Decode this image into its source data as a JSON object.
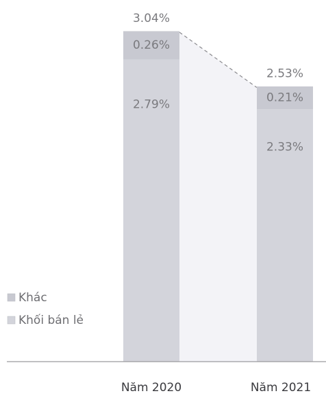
{
  "chart_data": {
    "type": "stacked_bar",
    "categories": [
      "Năm 2020",
      "Năm 2021"
    ],
    "series": [
      {
        "name": "Khối bán lẻ",
        "color": "#d3d4db",
        "values": [
          2.79,
          2.33
        ],
        "value_labels": [
          "2.79%",
          "2.33%"
        ]
      },
      {
        "name": "Khác",
        "color": "#c8c9d1",
        "values": [
          0.26,
          0.21
        ],
        "value_labels": [
          "0.26%",
          "0.21%"
        ]
      }
    ],
    "totals": [
      3.04,
      2.53
    ],
    "total_labels": [
      "3.04%",
      "2.53%"
    ]
  }
}
